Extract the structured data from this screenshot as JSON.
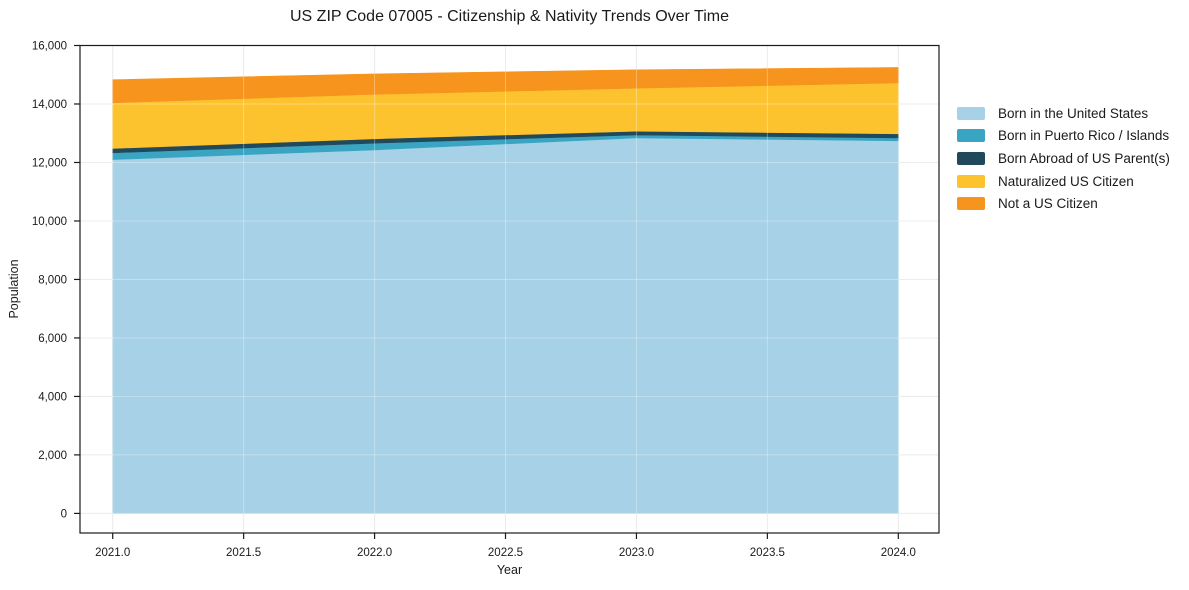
{
  "chart": {
    "title": "US ZIP Code 07005 - Citizenship & Nativity Trends Over Time",
    "xlabel": "Year",
    "ylabel": "Population"
  },
  "chart_data": {
    "type": "area",
    "stacked": true,
    "title": "US ZIP Code 07005 - Citizenship & Nativity Trends Over Time",
    "xlabel": "Year",
    "ylabel": "Population",
    "x": [
      2021,
      2022,
      2023,
      2024
    ],
    "series": [
      {
        "name": "Born in the United States",
        "color": "#a6d1e6",
        "values": [
          12100,
          12430,
          12840,
          12740
        ]
      },
      {
        "name": "Born in Puerto Rico / Islands",
        "color": "#3aa5c2",
        "values": [
          230,
          230,
          100,
          100
        ]
      },
      {
        "name": "Born Abroad of US Parent(s)",
        "color": "#21495c",
        "values": [
          150,
          150,
          130,
          140
        ]
      },
      {
        "name": "Naturalized US Citizen",
        "color": "#fdc32f",
        "values": [
          1560,
          1520,
          1470,
          1740
        ]
      },
      {
        "name": "Not a US Citizen",
        "color": "#f6941e",
        "values": [
          790,
          700,
          630,
          530
        ]
      }
    ],
    "x_ticks": {
      "values": [
        2021.0,
        2021.5,
        2022.0,
        2022.5,
        2023.0,
        2023.5,
        2024.0
      ],
      "labels": [
        "2021.0",
        "2021.5",
        "2022.0",
        "2022.5",
        "2023.0",
        "2023.5",
        "2024.0"
      ]
    },
    "y_ticks": {
      "values": [
        0,
        2000,
        4000,
        6000,
        8000,
        10000,
        12000,
        14000,
        16000
      ],
      "labels": [
        "0",
        "2,000",
        "4,000",
        "6,000",
        "8,000",
        "10,000",
        "12,000",
        "14,000",
        "16,000"
      ]
    },
    "xlim": [
      2020.87,
      2024.16
    ],
    "ylim": [
      -670,
      16000
    ],
    "grid": true,
    "legend_position": "right-outside",
    "colors": {
      "grid": "#e3e3e3",
      "spine": "#1a1a1a",
      "text": "#1a1a1a",
      "background": "#ffffff"
    }
  }
}
